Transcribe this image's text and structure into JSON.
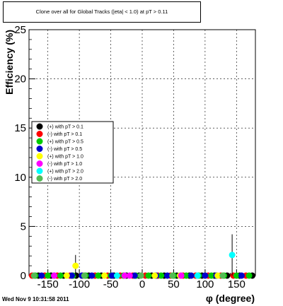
{
  "title": "Clone  over all for Global Tracks (|eta| < 1.0) at pT > 0.11",
  "footer": "Wed Nov  9 10:31:58 2011",
  "chart_data": {
    "type": "scatter",
    "xlabel": "φ (degree)",
    "ylabel": "Efficiency (%)",
    "xlim": [
      -180,
      180
    ],
    "ylim": [
      0,
      25
    ],
    "x_ticks": [
      -150,
      -100,
      -50,
      0,
      50,
      100,
      150
    ],
    "y_ticks": [
      0,
      5,
      10,
      15,
      20,
      25
    ],
    "grid": true,
    "legend_position": "center-left",
    "series": [
      {
        "name": "(+) with pT > 0.1",
        "color": "#000000",
        "points": [
          [
            -165,
            0
          ],
          [
            -145,
            0
          ],
          [
            -125,
            0
          ],
          [
            -105,
            0
          ],
          [
            -85,
            0
          ],
          [
            -65,
            0
          ],
          [
            -45,
            0
          ],
          [
            -25,
            0
          ],
          [
            -5,
            0
          ],
          [
            15,
            0
          ],
          [
            35,
            0
          ],
          [
            55,
            0
          ],
          [
            75,
            0
          ],
          [
            95,
            0
          ],
          [
            115,
            0
          ],
          [
            135,
            0
          ],
          [
            155,
            0
          ],
          [
            175,
            0
          ]
        ]
      },
      {
        "name": "(-) with pT > 0.1",
        "color": "#ff0000",
        "points": [
          [
            -175,
            0
          ],
          [
            -155,
            0
          ],
          [
            -135,
            0
          ],
          [
            -115,
            0
          ],
          [
            -95,
            0
          ],
          [
            -75,
            0
          ],
          [
            -55,
            0
          ],
          [
            -35,
            0
          ],
          [
            -15,
            0
          ],
          [
            5,
            0
          ],
          [
            25,
            0
          ],
          [
            45,
            0
          ],
          [
            65,
            0
          ],
          [
            85,
            0
          ],
          [
            105,
            0
          ],
          [
            125,
            0
          ],
          [
            145,
            0
          ],
          [
            165,
            0
          ]
        ]
      },
      {
        "name": "(+) with pT > 0.5",
        "color": "#00cc00",
        "points": [
          [
            -170,
            0
          ],
          [
            -150,
            0
          ],
          [
            -130,
            0
          ],
          [
            -110,
            0
          ],
          [
            -90,
            0
          ],
          [
            -70,
            0
          ],
          [
            -50,
            0
          ],
          [
            -30,
            0
          ],
          [
            -10,
            0
          ],
          [
            10,
            0
          ],
          [
            30,
            0
          ],
          [
            50,
            0
          ],
          [
            70,
            0
          ],
          [
            90,
            0
          ],
          [
            110,
            0
          ],
          [
            130,
            0
          ],
          [
            150,
            0
          ],
          [
            170,
            0
          ]
        ]
      },
      {
        "name": "(-) with pT > 0.5",
        "color": "#0000cc",
        "points": [
          [
            -160,
            0
          ],
          [
            -140,
            0
          ],
          [
            -112,
            0
          ],
          [
            -96,
            0
          ],
          [
            -80,
            0
          ],
          [
            -48,
            0
          ],
          [
            -12,
            0
          ],
          [
            22,
            0
          ],
          [
            40,
            0
          ],
          [
            78,
            0
          ],
          [
            100,
            0
          ],
          [
            118,
            0
          ],
          [
            158,
            0
          ]
        ]
      },
      {
        "name": "(+) with pT > 1.0",
        "color": "#ffff00",
        "points": [
          [
            -106,
            1.0
          ],
          [
            -120,
            0
          ],
          [
            -60,
            0
          ],
          [
            20,
            0
          ],
          [
            60,
            0
          ],
          [
            120,
            0
          ]
        ],
        "errors": [
          1.1,
          0,
          0,
          0,
          0,
          0
        ]
      },
      {
        "name": "(-) with pT > 1.0",
        "color": "#ff00ff",
        "points": [
          [
            -28,
            0
          ],
          [
            -20,
            0
          ],
          [
            62,
            0
          ],
          [
            -140,
            0
          ]
        ]
      },
      {
        "name": "(+) with pT > 2.0",
        "color": "#00ffff",
        "points": [
          [
            143,
            2.1
          ],
          [
            -40,
            0
          ],
          [
            88,
            0
          ]
        ],
        "errors": [
          2.1,
          0,
          0
        ]
      },
      {
        "name": "(-) with pT > 2.0",
        "color": "#55bb55",
        "points": [
          [
            -172,
            0
          ],
          [
            -92,
            0
          ],
          [
            -2,
            0
          ],
          [
            48,
            0
          ],
          [
            128,
            0
          ]
        ]
      }
    ]
  }
}
